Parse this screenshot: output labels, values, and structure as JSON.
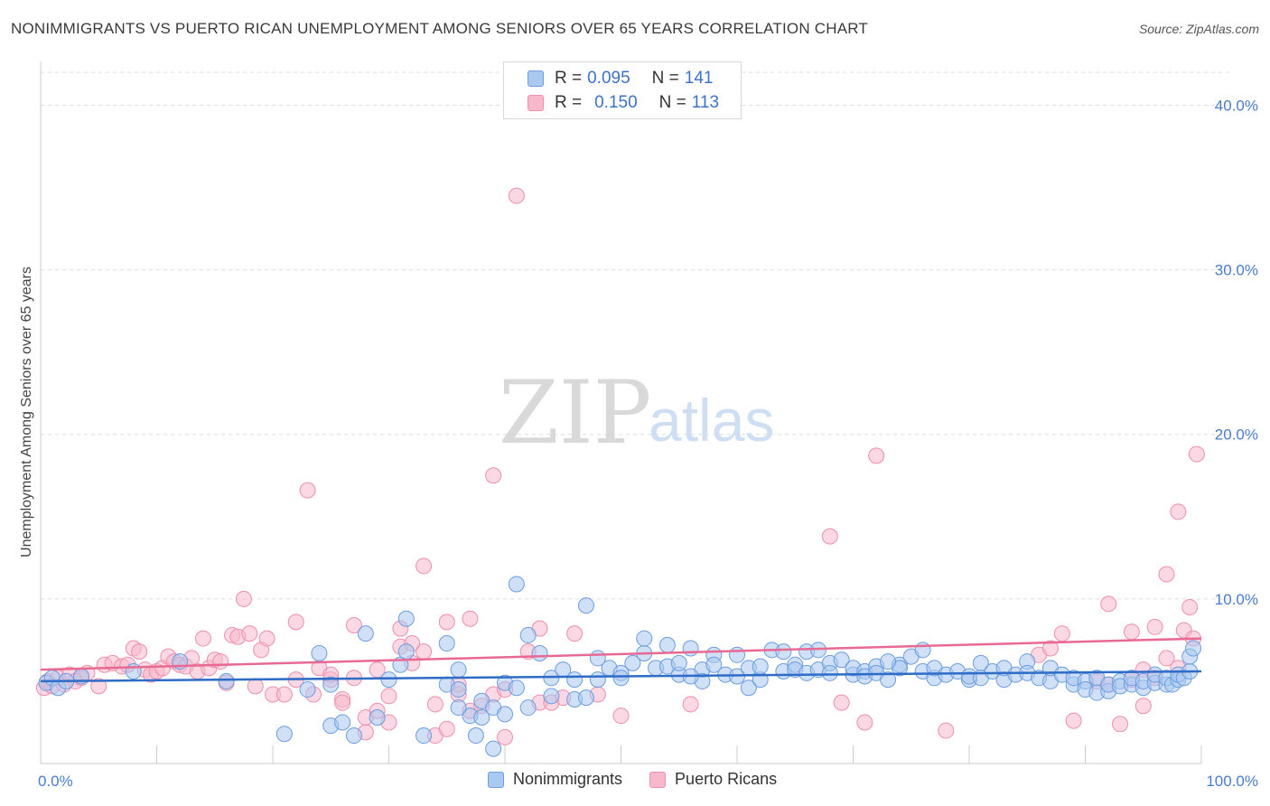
{
  "header": {
    "title": "NONIMMIGRANTS VS PUERTO RICAN UNEMPLOYMENT AMONG SENIORS OVER 65 YEARS CORRELATION CHART",
    "source": "Source: ZipAtlas.com"
  },
  "watermark": {
    "zip": "ZIP",
    "atlas": "atlas"
  },
  "legend": {
    "rows": [
      {
        "r_label": "R =",
        "r_value": "0.095",
        "n_label": "N =",
        "n_value": "141",
        "color": "#a9c9f0"
      },
      {
        "r_label": "R =",
        "r_value": "0.150",
        "n_label": "N =",
        "n_value": "113",
        "color": "#f7b8cc"
      }
    ],
    "bottom": [
      {
        "label": "Nonimmigrants",
        "color": "#a9c9f0"
      },
      {
        "label": "Puerto Ricans",
        "color": "#f7b8cc"
      }
    ]
  },
  "axes": {
    "ylabel": "Unemployment Among Seniors over 65 years",
    "x_min_label": "0.0%",
    "x_max_label": "100.0%",
    "y_tick_labels": [
      "10.0%",
      "20.0%",
      "30.0%",
      "40.0%"
    ]
  },
  "colors": {
    "blue_fill": "#a9c9f0",
    "blue_stroke": "#6b9de0",
    "blue_line": "#2e6cc7",
    "pink_fill": "#f7b8cc",
    "pink_stroke": "#ee8fae",
    "pink_line": "#e86a93",
    "grid": "#dddddd",
    "tick_text": "#4a7cc9"
  },
  "chart_data": {
    "type": "scatter",
    "xlabel": "",
    "ylabel": "Unemployment Among Seniors over 65 years",
    "xlim": [
      0,
      100
    ],
    "ylim": [
      0,
      42
    ],
    "y_ticks": [
      10,
      20,
      30,
      40
    ],
    "grid": true,
    "legend_position": "top-center",
    "series": [
      {
        "name": "Nonimmigrants",
        "color": "#a9c9f0",
        "R": 0.095,
        "N": 141,
        "trend": {
          "x": [
            0,
            100
          ],
          "y": [
            5.0,
            5.6
          ]
        },
        "points": [
          [
            0.5,
            4.9
          ],
          [
            1.0,
            5.2
          ],
          [
            1.5,
            4.6
          ],
          [
            2.2,
            5.0
          ],
          [
            3.5,
            5.3
          ],
          [
            21,
            1.8
          ],
          [
            24,
            6.7
          ],
          [
            25,
            4.8
          ],
          [
            25,
            2.3
          ],
          [
            26,
            2.5
          ],
          [
            27,
            1.7
          ],
          [
            28,
            7.9
          ],
          [
            29,
            2.8
          ],
          [
            31,
            6.0
          ],
          [
            31.5,
            8.8
          ],
          [
            31.5,
            6.8
          ],
          [
            33,
            1.7
          ],
          [
            35,
            4.8
          ],
          [
            35,
            7.3
          ],
          [
            36,
            4.5
          ],
          [
            36,
            5.7
          ],
          [
            37,
            2.9
          ],
          [
            37.5,
            1.7
          ],
          [
            38,
            3.8
          ],
          [
            38,
            2.8
          ],
          [
            39,
            0.9
          ],
          [
            39,
            3.4
          ],
          [
            40,
            4.9
          ],
          [
            40,
            3.0
          ],
          [
            41,
            4.6
          ],
          [
            41,
            10.9
          ],
          [
            42,
            7.8
          ],
          [
            42,
            3.4
          ],
          [
            43,
            6.7
          ],
          [
            44,
            5.2
          ],
          [
            44,
            4.1
          ],
          [
            45,
            5.7
          ],
          [
            46,
            5.1
          ],
          [
            46,
            3.9
          ],
          [
            47,
            9.6
          ],
          [
            47,
            4.0
          ],
          [
            48,
            6.4
          ],
          [
            48,
            5.1
          ],
          [
            49,
            5.8
          ],
          [
            50,
            5.5
          ],
          [
            50,
            5.2
          ],
          [
            51,
            6.1
          ],
          [
            52,
            6.7
          ],
          [
            52,
            7.6
          ],
          [
            53,
            5.8
          ],
          [
            54,
            7.2
          ],
          [
            54,
            5.9
          ],
          [
            55,
            5.4
          ],
          [
            55,
            6.1
          ],
          [
            56,
            7.0
          ],
          [
            57,
            5.7
          ],
          [
            57,
            5.0
          ],
          [
            58,
            6.6
          ],
          [
            58,
            6.0
          ],
          [
            59,
            5.4
          ],
          [
            60,
            5.3
          ],
          [
            60,
            6.6
          ],
          [
            61,
            4.6
          ],
          [
            61,
            5.8
          ],
          [
            62,
            5.1
          ],
          [
            62,
            5.9
          ],
          [
            63,
            6.9
          ],
          [
            64,
            5.6
          ],
          [
            64,
            6.8
          ],
          [
            65,
            6.0
          ],
          [
            65,
            5.7
          ],
          [
            66,
            6.8
          ],
          [
            66,
            5.5
          ],
          [
            67,
            6.9
          ],
          [
            67,
            5.7
          ],
          [
            68,
            6.1
          ],
          [
            68,
            5.5
          ],
          [
            69,
            6.3
          ],
          [
            70,
            5.4
          ],
          [
            70,
            5.8
          ],
          [
            71,
            5.6
          ],
          [
            71,
            5.3
          ],
          [
            72,
            5.9
          ],
          [
            72,
            5.5
          ],
          [
            73,
            5.1
          ],
          [
            74,
            6.0
          ],
          [
            74,
            5.8
          ],
          [
            75,
            6.5
          ],
          [
            76,
            6.9
          ],
          [
            76,
            5.6
          ],
          [
            77,
            5.2
          ],
          [
            77,
            5.8
          ],
          [
            78,
            5.4
          ],
          [
            79,
            5.6
          ],
          [
            80,
            5.1
          ],
          [
            80,
            5.3
          ],
          [
            81,
            6.1
          ],
          [
            81,
            5.2
          ],
          [
            82,
            5.6
          ],
          [
            83,
            5.1
          ],
          [
            83,
            5.8
          ],
          [
            84,
            5.4
          ],
          [
            85,
            6.2
          ],
          [
            85,
            5.5
          ],
          [
            86,
            5.2
          ],
          [
            87,
            5.0
          ],
          [
            87,
            5.8
          ],
          [
            88,
            5.4
          ],
          [
            89,
            4.8
          ],
          [
            89,
            5.2
          ],
          [
            90,
            5.0
          ],
          [
            90,
            4.5
          ],
          [
            91,
            5.2
          ],
          [
            91,
            4.3
          ],
          [
            92,
            4.4
          ],
          [
            92,
            4.8
          ],
          [
            93,
            5.0
          ],
          [
            93,
            4.7
          ],
          [
            94,
            4.8
          ],
          [
            94,
            5.2
          ],
          [
            95,
            4.6
          ],
          [
            95,
            5.0
          ],
          [
            96,
            4.9
          ],
          [
            96,
            5.4
          ],
          [
            97,
            4.8
          ],
          [
            97,
            5.2
          ],
          [
            97.5,
            4.8
          ],
          [
            98,
            5.1
          ],
          [
            98,
            5.4
          ],
          [
            98.5,
            5.2
          ],
          [
            99,
            5.6
          ],
          [
            99,
            6.5
          ],
          [
            99.3,
            7.0
          ],
          [
            16,
            5.0
          ],
          [
            12,
            6.2
          ],
          [
            8,
            5.6
          ],
          [
            23,
            4.5
          ],
          [
            30,
            5.1
          ],
          [
            36,
            3.4
          ],
          [
            56,
            5.3
          ],
          [
            73,
            6.2
          ]
        ]
      },
      {
        "name": "Puerto Ricans",
        "color": "#f7b8cc",
        "R": 0.15,
        "N": 113,
        "trend": {
          "x": [
            0,
            100
          ],
          "y": [
            5.7,
            7.6
          ]
        },
        "points": [
          [
            0.3,
            4.6
          ],
          [
            0.6,
            5.0
          ],
          [
            1.0,
            4.7
          ],
          [
            1.5,
            5.2
          ],
          [
            2.0,
            4.8
          ],
          [
            2.5,
            5.4
          ],
          [
            3.0,
            5.0
          ],
          [
            3.5,
            5.2
          ],
          [
            4.0,
            5.5
          ],
          [
            5.0,
            4.7
          ],
          [
            5.5,
            6.0
          ],
          [
            6.2,
            6.1
          ],
          [
            7,
            5.9
          ],
          [
            7.5,
            6.0
          ],
          [
            8,
            7.0
          ],
          [
            8.5,
            6.8
          ],
          [
            9,
            5.7
          ],
          [
            9.5,
            5.4
          ],
          [
            10,
            5.6
          ],
          [
            10.5,
            5.8
          ],
          [
            11,
            6.5
          ],
          [
            11.5,
            6.2
          ],
          [
            12,
            6.0
          ],
          [
            12.5,
            5.9
          ],
          [
            13,
            6.4
          ],
          [
            13.5,
            5.6
          ],
          [
            14,
            7.6
          ],
          [
            14.5,
            5.8
          ],
          [
            15,
            6.3
          ],
          [
            15.5,
            6.2
          ],
          [
            16,
            4.9
          ],
          [
            16.5,
            7.8
          ],
          [
            17,
            7.7
          ],
          [
            17.5,
            10.0
          ],
          [
            18,
            7.9
          ],
          [
            18.5,
            4.7
          ],
          [
            19,
            6.9
          ],
          [
            19.5,
            7.6
          ],
          [
            20,
            4.2
          ],
          [
            21,
            4.2
          ],
          [
            22,
            5.1
          ],
          [
            22,
            8.6
          ],
          [
            23,
            16.6
          ],
          [
            23.5,
            4.2
          ],
          [
            24,
            5.8
          ],
          [
            25,
            5.1
          ],
          [
            25,
            5.4
          ],
          [
            26,
            3.9
          ],
          [
            26,
            3.7
          ],
          [
            27,
            8.4
          ],
          [
            27,
            5.2
          ],
          [
            28,
            1.9
          ],
          [
            28,
            2.8
          ],
          [
            29,
            3.2
          ],
          [
            29,
            5.7
          ],
          [
            30,
            4.1
          ],
          [
            30,
            2.5
          ],
          [
            31,
            7.1
          ],
          [
            31,
            8.2
          ],
          [
            32,
            6.1
          ],
          [
            32,
            7.3
          ],
          [
            33,
            6.8
          ],
          [
            33,
            12.0
          ],
          [
            34,
            1.7
          ],
          [
            34,
            3.6
          ],
          [
            35,
            8.6
          ],
          [
            35,
            2.1
          ],
          [
            36,
            4.2
          ],
          [
            37,
            3.2
          ],
          [
            37,
            8.8
          ],
          [
            38,
            3.5
          ],
          [
            39,
            4.2
          ],
          [
            39,
            17.5
          ],
          [
            40,
            4.5
          ],
          [
            40,
            1.6
          ],
          [
            41,
            34.5
          ],
          [
            42,
            6.8
          ],
          [
            43,
            8.2
          ],
          [
            43,
            3.7
          ],
          [
            44,
            3.7
          ],
          [
            45,
            4.0
          ],
          [
            46,
            7.9
          ],
          [
            48,
            4.2
          ],
          [
            50,
            2.9
          ],
          [
            56,
            3.6
          ],
          [
            68,
            13.8
          ],
          [
            69,
            3.7
          ],
          [
            71,
            2.5
          ],
          [
            72,
            18.7
          ],
          [
            78,
            2.0
          ],
          [
            86,
            6.6
          ],
          [
            87,
            7.0
          ],
          [
            88,
            7.9
          ],
          [
            89,
            2.6
          ],
          [
            91,
            5.0
          ],
          [
            92,
            9.7
          ],
          [
            92,
            4.8
          ],
          [
            93,
            2.4
          ],
          [
            94,
            5.1
          ],
          [
            94,
            8.0
          ],
          [
            95,
            5.7
          ],
          [
            95,
            3.5
          ],
          [
            96,
            8.3
          ],
          [
            96,
            5.2
          ],
          [
            97,
            11.5
          ],
          [
            97,
            6.4
          ],
          [
            98,
            15.3
          ],
          [
            98,
            5.8
          ],
          [
            98.5,
            8.1
          ],
          [
            99,
            9.5
          ],
          [
            99.3,
            7.6
          ],
          [
            99.6,
            18.8
          ],
          [
            36,
            4.8
          ]
        ]
      }
    ]
  }
}
